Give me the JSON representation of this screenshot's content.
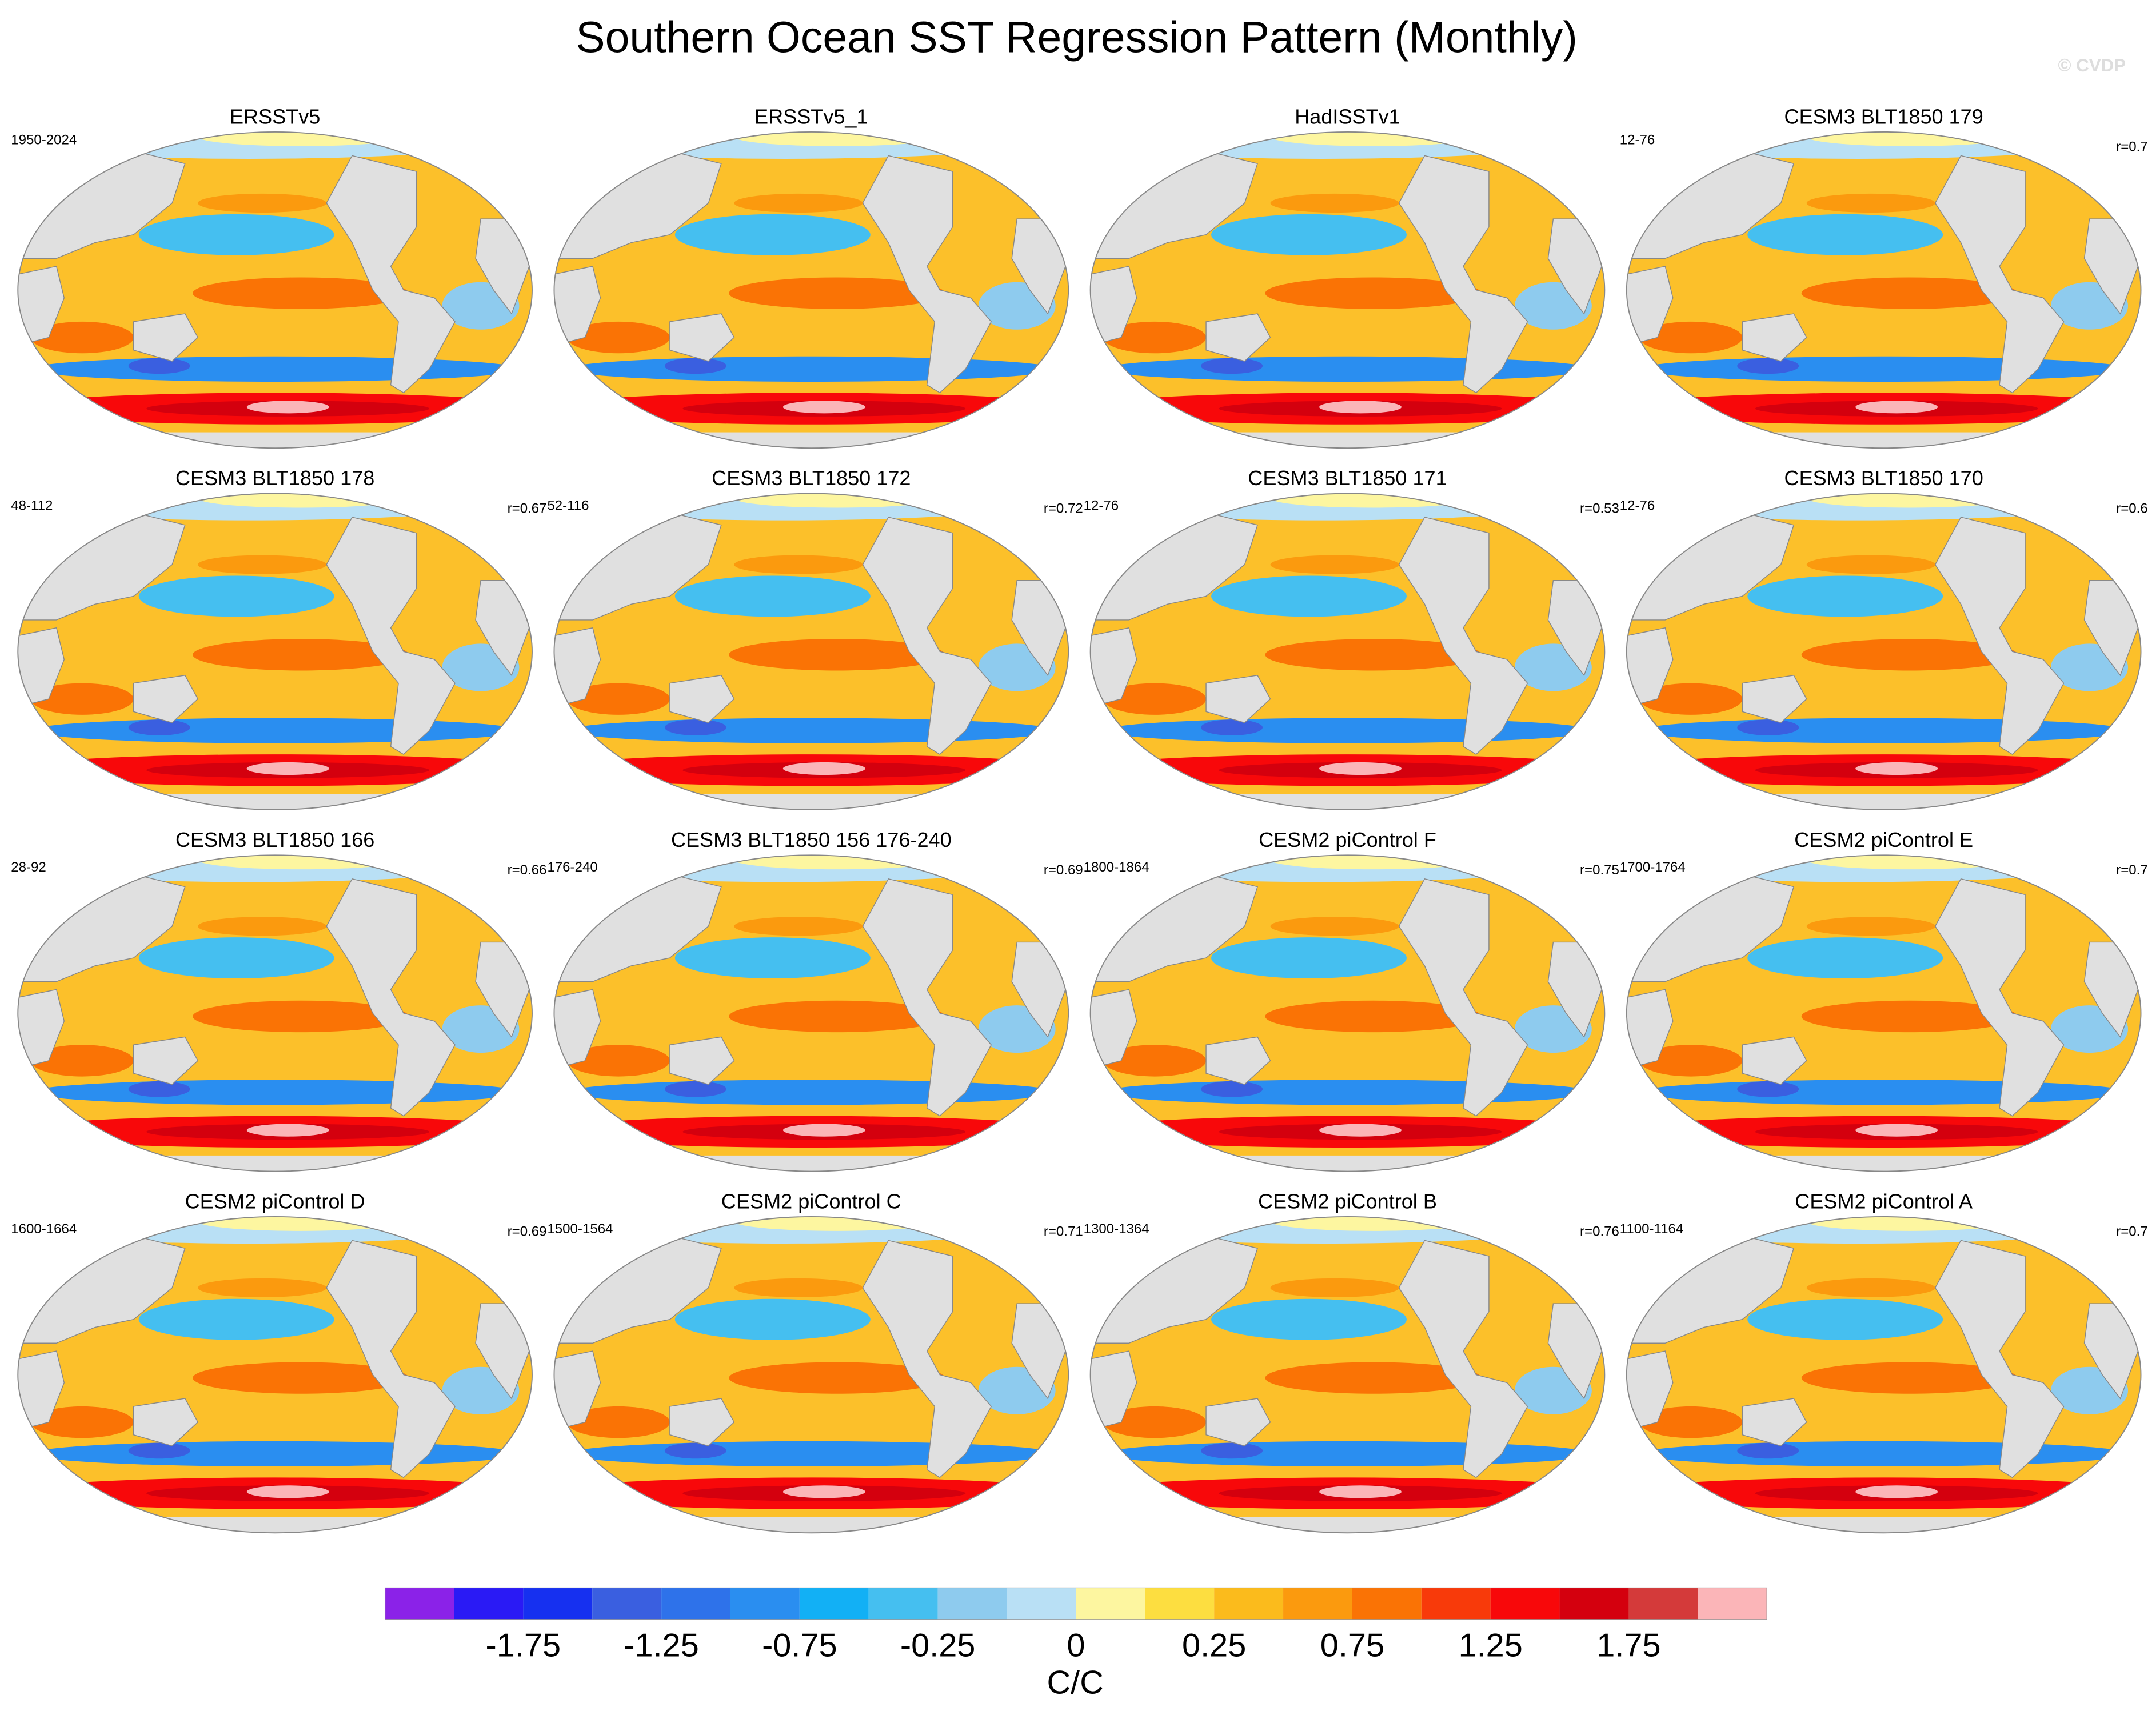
{
  "figure": {
    "title": "Southern Ocean SST Regression Pattern (Monthly)",
    "watermark": "© CVDP",
    "panels": [
      {
        "title": "ERSSTv5",
        "left_label": "1950-2024"
      },
      {
        "title": "ERSSTv5_1"
      },
      {
        "title": "HadISSTv1"
      },
      {
        "title": "CESM3 BLT1850 179",
        "left_label": "12-76",
        "right_label": "r=0.7"
      },
      {
        "title": "CESM3 BLT1850 178",
        "left_label": "48-112",
        "right_label": "r=0.67"
      },
      {
        "title": "CESM3 BLT1850 172",
        "left_label": "52-116",
        "right_label": "r=0.72"
      },
      {
        "title": "CESM3 BLT1850 171",
        "left_label": "12-76",
        "right_label": "r=0.53"
      },
      {
        "title": "CESM3 BLT1850 170",
        "left_label": "12-76",
        "right_label": "r=0.6"
      },
      {
        "title": "CESM3 BLT1850 166",
        "left_label": "28-92",
        "right_label": "r=0.66"
      },
      {
        "title": "CESM3 BLT1850 156 176-240",
        "left_label": "176-240",
        "right_label": "r=0.69"
      },
      {
        "title": "CESM2 piControl F",
        "left_label": "1800-1864",
        "right_label": "r=0.75"
      },
      {
        "title": "CESM2 piControl E",
        "left_label": "1700-1764",
        "right_label": "r=0.7"
      },
      {
        "title": "CESM2 piControl D",
        "left_label": "1600-1664",
        "right_label": "r=0.69"
      },
      {
        "title": "CESM2 piControl C",
        "left_label": "1500-1564",
        "right_label": "r=0.71"
      },
      {
        "title": "CESM2 piControl B",
        "left_label": "1300-1364",
        "right_label": "r=0.76"
      },
      {
        "title": "CESM2 piControl A",
        "left_label": "1100-1164",
        "right_label": "r=0.7"
      }
    ],
    "colorbar": {
      "colors": [
        "#8b22e8",
        "#2a1af5",
        "#1630f0",
        "#3a5fe0",
        "#2e72ea",
        "#2a8ef0",
        "#12b0f5",
        "#45bff0",
        "#8ecbee",
        "#b9e0f5",
        "#fdf6a0",
        "#fdde40",
        "#fbbb1c",
        "#fb9a0e",
        "#fa7305",
        "#f83a0a",
        "#f8080a",
        "#d4000e",
        "#d43a3a",
        "#fbb5b8"
      ],
      "ticks": [
        -1.75,
        -1.25,
        -0.75,
        -0.25,
        0,
        0.25,
        0.75,
        1.25,
        1.75
      ],
      "unit": "C/C"
    }
  }
}
